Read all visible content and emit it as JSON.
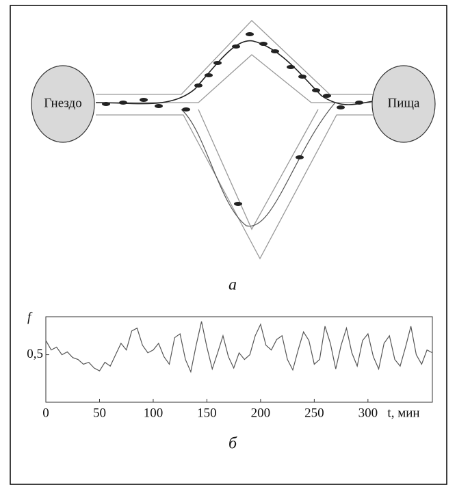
{
  "diagram": {
    "nest": "Гнездо",
    "food": "Пища",
    "caption": "а"
  },
  "chart_data": {
    "type": "line",
    "caption": "б",
    "y_label": "f",
    "x_label": "t, мин",
    "x": [
      0,
      5,
      10,
      15,
      20,
      25,
      30,
      35,
      40,
      45,
      50,
      55,
      60,
      65,
      70,
      75,
      80,
      85,
      90,
      95,
      100,
      105,
      110,
      115,
      120,
      125,
      130,
      135,
      140,
      145,
      150,
      155,
      160,
      165,
      170,
      175,
      180,
      185,
      190,
      195,
      200,
      205,
      210,
      215,
      220,
      225,
      230,
      235,
      240,
      245,
      250,
      255,
      260,
      265,
      270,
      275,
      280,
      285,
      290,
      295,
      300,
      305,
      310,
      315,
      320,
      325,
      330,
      335,
      340,
      345,
      350,
      355,
      360
    ],
    "series": [
      {
        "color": "#555555",
        "values": [
          0.65,
          0.55,
          0.58,
          0.5,
          0.53,
          0.47,
          0.45,
          0.4,
          0.42,
          0.36,
          0.33,
          0.42,
          0.38,
          0.5,
          0.62,
          0.55,
          0.75,
          0.78,
          0.6,
          0.52,
          0.55,
          0.62,
          0.48,
          0.4,
          0.68,
          0.72,
          0.45,
          0.32,
          0.6,
          0.85,
          0.58,
          0.35,
          0.52,
          0.7,
          0.48,
          0.36,
          0.52,
          0.45,
          0.5,
          0.7,
          0.82,
          0.6,
          0.55,
          0.66,
          0.7,
          0.45,
          0.34,
          0.55,
          0.74,
          0.65,
          0.4,
          0.45,
          0.8,
          0.62,
          0.35,
          0.6,
          0.78,
          0.52,
          0.38,
          0.65,
          0.72,
          0.48,
          0.35,
          0.62,
          0.7,
          0.45,
          0.38,
          0.58,
          0.8,
          0.5,
          0.4,
          0.55,
          0.52
        ]
      }
    ],
    "xlim": [
      0,
      360
    ],
    "xticks": [
      0,
      50,
      100,
      150,
      200,
      250,
      300
    ],
    "ylim": [
      0,
      0.9
    ],
    "yticks": [
      {
        "value": 0.5,
        "label": "0,5"
      }
    ]
  }
}
